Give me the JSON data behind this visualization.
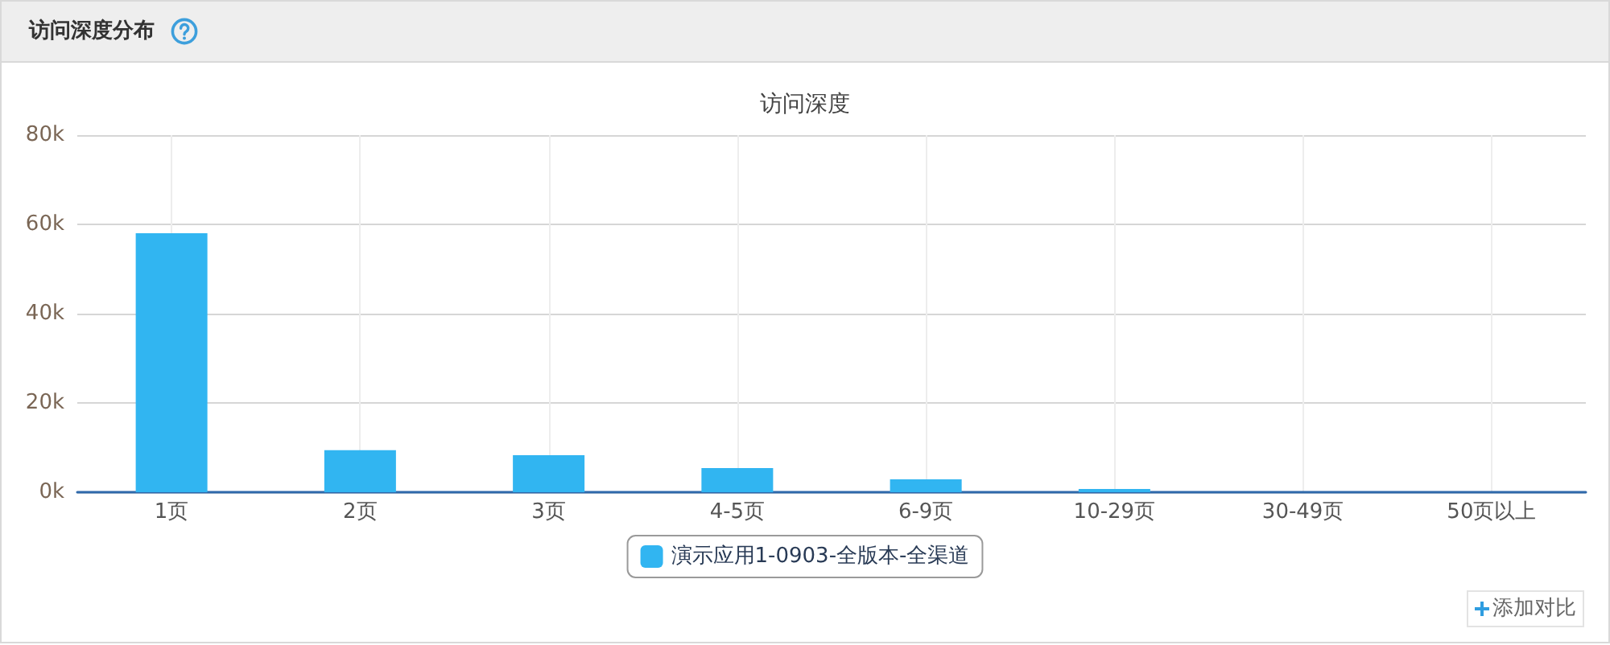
{
  "chart_data": {
    "type": "bar",
    "title": "访问深度分布",
    "subtitle": "访问深度",
    "categories": [
      "1页",
      "2页",
      "3页",
      "4-5页",
      "6-9页",
      "10-29页",
      "30-49页",
      "50页以上"
    ],
    "series": [
      {
        "name": "演示应用1-0903-全版本-全渠道",
        "color": "#31b5f1",
        "values": [
          58000,
          9400,
          8300,
          5400,
          2900,
          700,
          0,
          0
        ]
      }
    ],
    "ylim": [
      0,
      80000
    ],
    "yticks": [
      {
        "value": 0,
        "label": "0k"
      },
      {
        "value": 20000,
        "label": "20k"
      },
      {
        "value": 40000,
        "label": "40k"
      },
      {
        "value": 60000,
        "label": "60k"
      },
      {
        "value": 80000,
        "label": "80k"
      }
    ],
    "grid": true,
    "legend": "bottom",
    "annotations": [
      "添加对比"
    ]
  }
}
